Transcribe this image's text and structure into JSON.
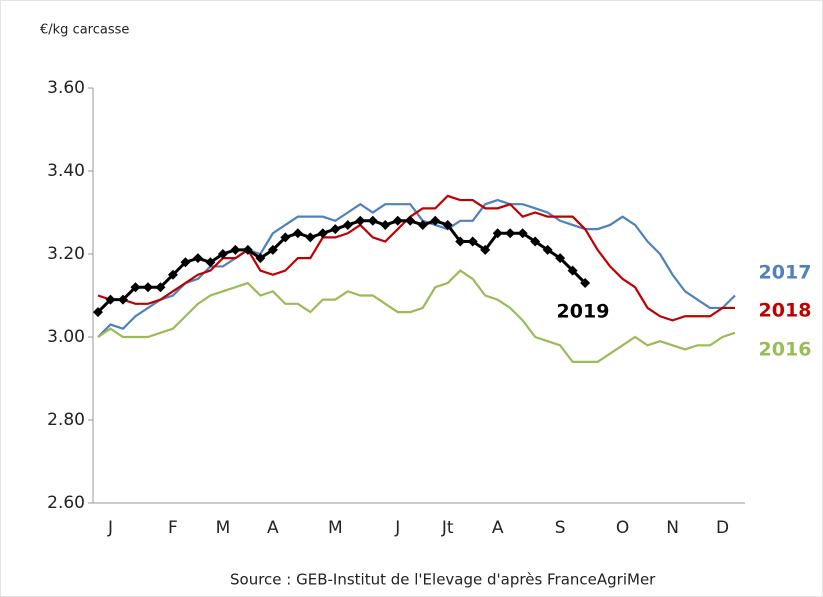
{
  "chart_data": {
    "type": "line",
    "y_label": "€/kg carcasse",
    "source": "Source : GEB-Institut de l'Elevage d'après FranceAgriMer",
    "categories": [
      null,
      "J",
      null,
      null,
      null,
      null,
      "F",
      null,
      null,
      null,
      "M",
      null,
      null,
      null,
      "A",
      null,
      null,
      null,
      null,
      "M",
      null,
      null,
      null,
      null,
      "J",
      null,
      null,
      null,
      "Jt",
      null,
      null,
      null,
      "A",
      null,
      null,
      null,
      null,
      "S",
      null,
      null,
      null,
      null,
      "O",
      null,
      null,
      null,
      "N",
      null,
      null,
      null,
      "D",
      null
    ],
    "ylim": [
      2.6,
      3.6
    ],
    "yticks": [
      {
        "value": 2.6,
        "label": "2.60"
      },
      {
        "value": 2.8,
        "label": "2.80"
      },
      {
        "value": 3.0,
        "label": "3.00"
      },
      {
        "value": 3.2,
        "label": "3.20"
      },
      {
        "value": 3.4,
        "label": "3.40"
      },
      {
        "value": 3.6,
        "label": "3.60"
      }
    ],
    "series": [
      {
        "name": "2017",
        "color": "#4f81bd",
        "values": [
          3.0,
          3.03,
          3.02,
          3.05,
          3.07,
          3.09,
          3.1,
          3.13,
          3.14,
          3.17,
          3.17,
          3.19,
          3.21,
          3.2,
          3.25,
          3.27,
          3.29,
          3.29,
          3.29,
          3.28,
          3.3,
          3.32,
          3.3,
          3.32,
          3.32,
          3.32,
          3.28,
          3.27,
          3.26,
          3.28,
          3.28,
          3.32,
          3.33,
          3.32,
          3.32,
          3.31,
          3.3,
          3.28,
          3.27,
          3.26,
          3.26,
          3.27,
          3.29,
          3.27,
          3.23,
          3.2,
          3.15,
          3.11,
          3.09,
          3.07,
          3.07,
          3.1
        ]
      },
      {
        "name": "2018",
        "color": "#c00000",
        "values": [
          3.1,
          3.09,
          3.09,
          3.08,
          3.08,
          3.09,
          3.11,
          3.13,
          3.15,
          3.16,
          3.19,
          3.19,
          3.21,
          3.16,
          3.15,
          3.16,
          3.19,
          3.19,
          3.24,
          3.24,
          3.25,
          3.27,
          3.24,
          3.23,
          3.26,
          3.29,
          3.31,
          3.31,
          3.34,
          3.33,
          3.33,
          3.31,
          3.31,
          3.32,
          3.29,
          3.3,
          3.29,
          3.29,
          3.29,
          3.26,
          3.21,
          3.17,
          3.14,
          3.12,
          3.07,
          3.05,
          3.04,
          3.05,
          3.05,
          3.05,
          3.07,
          3.07
        ]
      },
      {
        "name": "2016",
        "color": "#9bbb59",
        "values": [
          3.0,
          3.02,
          3.0,
          3.0,
          3.0,
          3.01,
          3.02,
          3.05,
          3.08,
          3.1,
          3.11,
          3.12,
          3.13,
          3.1,
          3.11,
          3.08,
          3.08,
          3.06,
          3.09,
          3.09,
          3.11,
          3.1,
          3.1,
          3.08,
          3.06,
          3.06,
          3.07,
          3.12,
          3.13,
          3.16,
          3.14,
          3.1,
          3.09,
          3.07,
          3.04,
          3.0,
          2.99,
          2.98,
          2.94,
          2.94,
          2.94,
          2.96,
          2.98,
          3.0,
          2.98,
          2.99,
          2.98,
          2.97,
          2.98,
          2.98,
          3.0,
          3.01
        ]
      },
      {
        "name": "2019",
        "color": "#000000",
        "markers": true,
        "values": [
          3.06,
          3.09,
          3.09,
          3.12,
          3.12,
          3.12,
          3.15,
          3.18,
          3.19,
          3.18,
          3.2,
          3.21,
          3.21,
          3.19,
          3.21,
          3.24,
          3.25,
          3.24,
          3.25,
          3.26,
          3.27,
          3.28,
          3.28,
          3.27,
          3.28,
          3.28,
          3.27,
          3.28,
          3.27,
          3.23,
          3.23,
          3.21,
          3.25,
          3.25,
          3.25,
          3.23,
          3.21,
          3.19,
          3.16,
          3.13,
          null,
          null,
          null,
          null,
          null,
          null,
          null,
          null,
          null,
          null,
          null,
          null
        ]
      }
    ]
  }
}
